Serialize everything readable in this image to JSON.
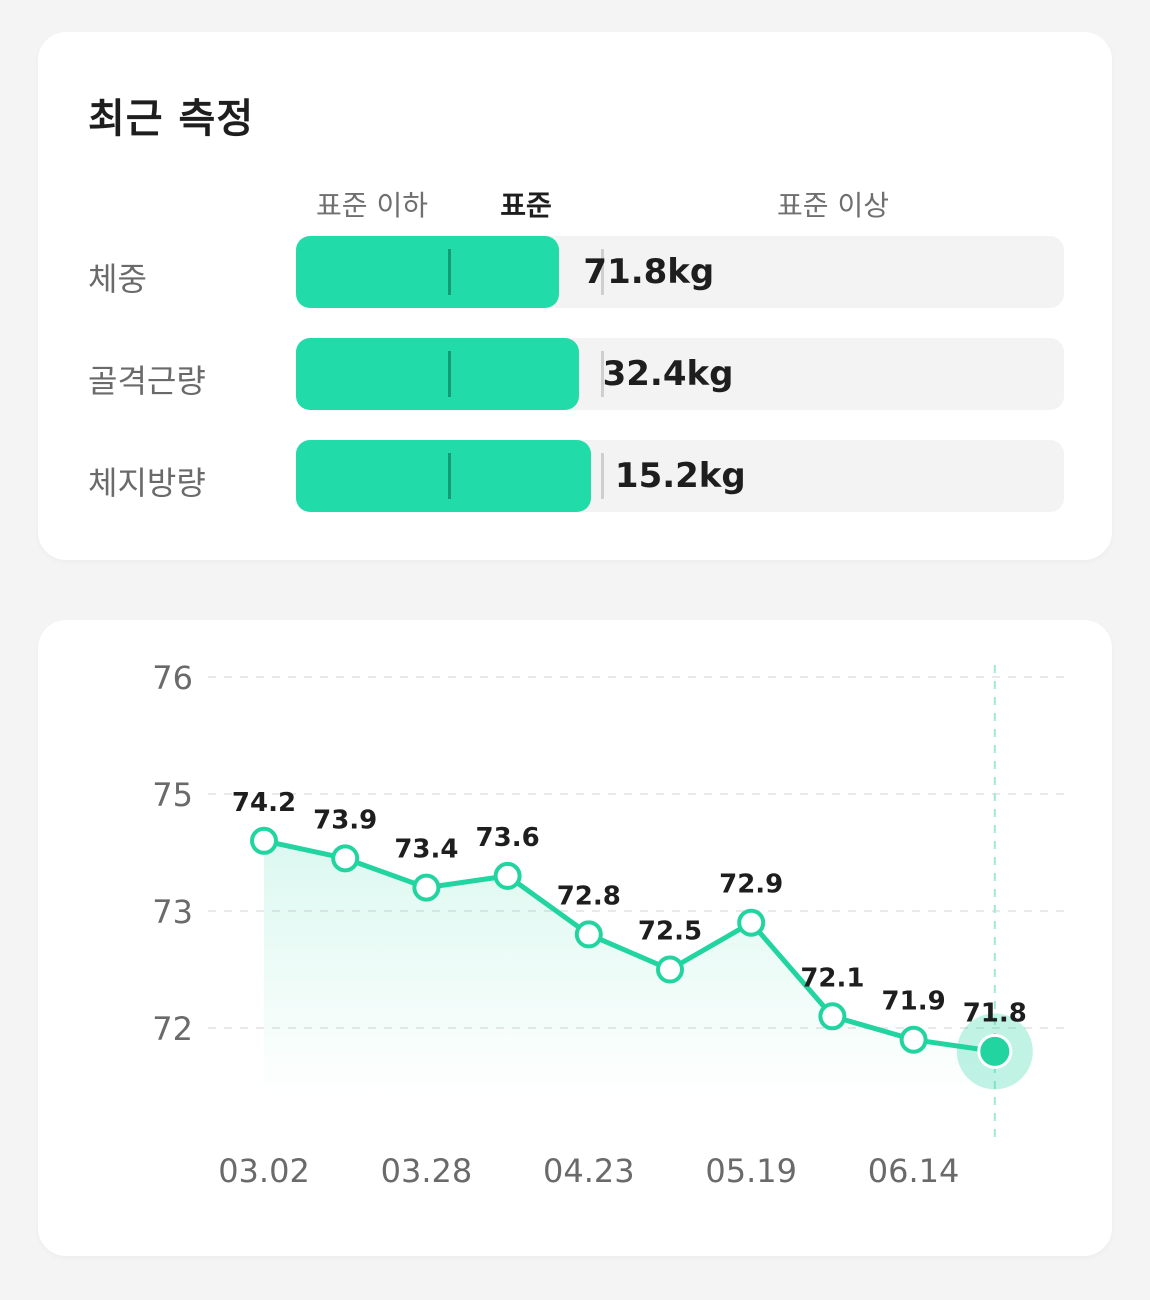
{
  "recent": {
    "title": "최근 측정",
    "ranges": {
      "below": "표준 이하",
      "standard": "표준",
      "above": "표준 이상"
    },
    "metrics": [
      {
        "label": "체중",
        "value": "71.8kg",
        "fill_fraction": 0.343
      },
      {
        "label": "골격근량",
        "value": "32.4kg",
        "fill_fraction": 0.368
      },
      {
        "label": "체지방량",
        "value": "15.2kg",
        "fill_fraction": 0.384
      }
    ]
  },
  "chart_data": {
    "type": "line",
    "title": "",
    "xlabel": "",
    "ylabel": "",
    "x": [
      "03.02",
      "03.15",
      "03.28",
      "04.10",
      "04.23",
      "05.06",
      "05.19",
      "06.01",
      "06.14",
      "06.27"
    ],
    "x_tick_labels": [
      "03.02",
      "03.28",
      "04.23",
      "05.19",
      "06.14"
    ],
    "y_tick_labels": [
      "76",
      "75",
      "73",
      "72"
    ],
    "series": [
      {
        "values": [
          74.2,
          73.9,
          73.4,
          73.6,
          72.8,
          72.5,
          72.9,
          72.1,
          71.9,
          71.8
        ]
      }
    ],
    "data_labels": [
      "74.2",
      "73.9",
      "73.4",
      "73.6",
      "72.8",
      "72.5",
      "72.9",
      "72.1",
      "71.9",
      "71.8"
    ],
    "highlight_last": true,
    "grid": "horizontal-dashed",
    "line_color": "#21d4a0"
  }
}
